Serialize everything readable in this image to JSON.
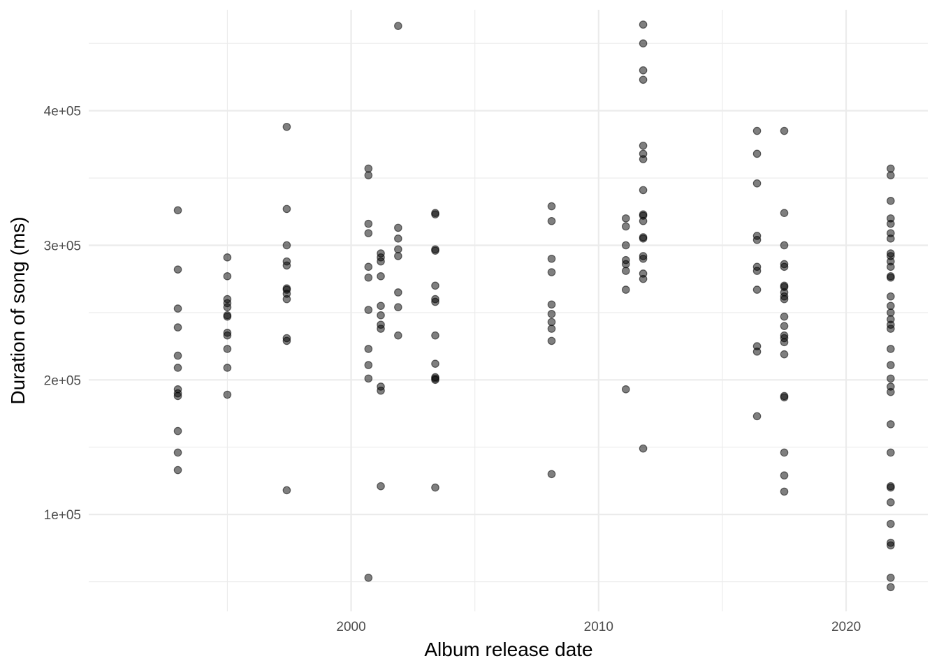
{
  "chart_data": {
    "type": "scatter",
    "xlabel": "Album release date",
    "ylabel": "Duration of song (ms)",
    "x_ticks": [
      2000,
      2010,
      2020
    ],
    "x_tick_labels": [
      "2000",
      "2010",
      "2020"
    ],
    "y_ticks": [
      100000,
      200000,
      300000,
      400000
    ],
    "y_tick_labels": [
      "1e+05",
      "2e+05",
      "3e+05",
      "4e+05"
    ],
    "xlim": [
      1989.4,
      2023.3
    ],
    "ylim": [
      28000,
      475000
    ],
    "grid": true,
    "legend": "none",
    "point_color": "#000000",
    "series": [
      {
        "groups": [
          {
            "x": 1993.0,
            "y": [
              326000,
              282000,
              253000,
              239000,
              218000,
              209000,
              193000,
              190000,
              188000,
              162000,
              146000,
              133000
            ]
          },
          {
            "x": 1995.0,
            "y": [
              291000,
              277000,
              260000,
              257000,
              254000,
              248000,
              247000,
              235000,
              233000,
              223000,
              209000,
              189000
            ]
          },
          {
            "x": 1997.4,
            "y": [
              388000,
              327000,
              300000,
              288000,
              285000,
              268000,
              267000,
              264000,
              260000,
              231000,
              229000,
              118000
            ]
          },
          {
            "x": 2000.7,
            "y": [
              357000,
              352000,
              316000,
              309000,
              284000,
              276000,
              252000,
              223000,
              211000,
              201000,
              53000
            ]
          },
          {
            "x": 2001.2,
            "y": [
              294000,
              291000,
              288000,
              277000,
              255000,
              248000,
              241000,
              238000,
              195000,
              192000,
              121000
            ]
          },
          {
            "x": 2001.9,
            "y": [
              463000,
              313000,
              305000,
              297000,
              292000,
              265000,
              254000,
              233000
            ]
          },
          {
            "x": 2003.4,
            "y": [
              324000,
              323000,
              297000,
              296000,
              270000,
              260000,
              258000,
              233000,
              212000,
              202000,
              201000,
              200000,
              120000
            ]
          },
          {
            "x": 2008.1,
            "y": [
              329000,
              318000,
              290000,
              280000,
              256000,
              249000,
              243000,
              238000,
              229000,
              130000
            ]
          },
          {
            "x": 2011.1,
            "y": [
              320000,
              314000,
              300000,
              289000,
              286000,
              281000,
              267000,
              193000
            ]
          },
          {
            "x": 2011.8,
            "y": [
              464000,
              450000,
              430000,
              423000,
              374000,
              368000,
              364000,
              341000,
              323000,
              322000,
              318000,
              306000,
              305000,
              292000,
              290000,
              279000,
              275000,
              149000
            ]
          },
          {
            "x": 2016.4,
            "y": [
              385000,
              368000,
              346000,
              307000,
              304000,
              284000,
              281000,
              267000,
              225000,
              221000,
              173000
            ]
          },
          {
            "x": 2017.5,
            "y": [
              385000,
              324000,
              300000,
              286000,
              284000,
              270000,
              269000,
              265000,
              262000,
              260000,
              247000,
              240000,
              233000,
              231000,
              228000,
              219000,
              188000,
              187000,
              146000,
              129000,
              117000
            ]
          },
          {
            "x": 2021.8,
            "y": [
              357000,
              352000,
              333000,
              320000,
              316000,
              309000,
              305000,
              294000,
              292000,
              288000,
              284000,
              277000,
              276000,
              262000,
              255000,
              250000,
              245000,
              241000,
              238000,
              223000,
              211000,
              201000,
              195000,
              191000,
              167000,
              146000,
              121000,
              120000,
              109000,
              93000,
              79000,
              77000,
              53000,
              46000
            ]
          }
        ]
      }
    ]
  }
}
